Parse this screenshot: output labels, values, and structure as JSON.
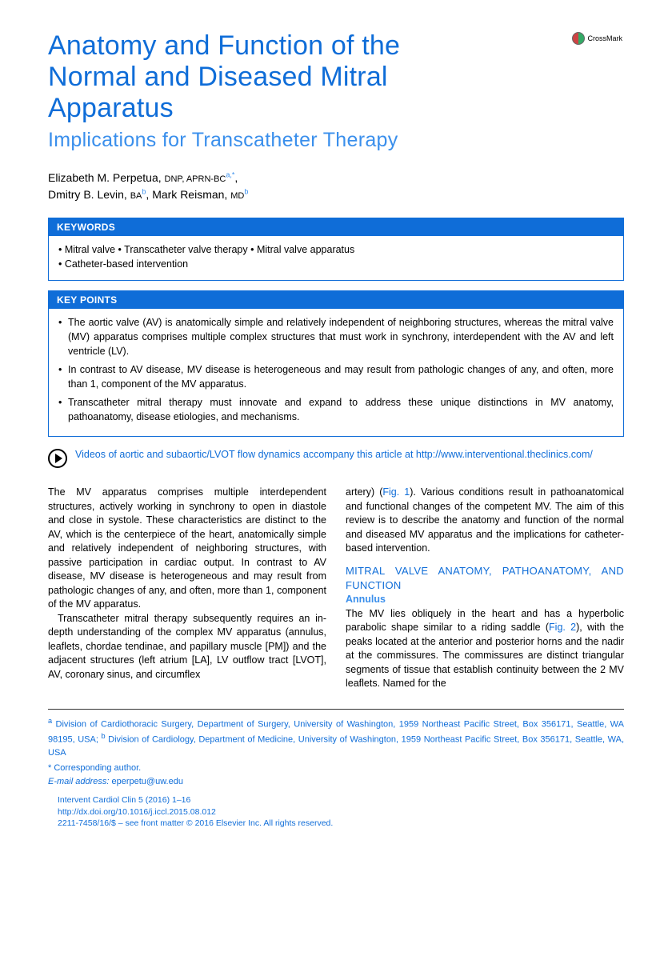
{
  "crossmark": {
    "label": "CrossMark"
  },
  "title": "Anatomy and Function of the Normal and Diseased Mitral Apparatus",
  "subtitle": "Implications for Transcatheter Therapy",
  "authors": {
    "a1": {
      "name": "Elizabeth M. Perpetua,",
      "cred": "DNP, APRN-BC",
      "sup": "a,*"
    },
    "a2": {
      "name": "Dmitry B. Levin,",
      "cred": "BA",
      "sup": "b"
    },
    "a3": {
      "name": "Mark Reisman,",
      "cred": "MD",
      "sup": "b"
    }
  },
  "keywords": {
    "header": "KEYWORDS",
    "line1": "• Mitral valve • Transcatheter valve therapy • Mitral valve apparatus",
    "line2": "• Catheter-based intervention"
  },
  "keypoints": {
    "header": "KEY POINTS",
    "items": [
      "The aortic valve (AV) is anatomically simple and relatively independent of neighboring structures, whereas the mitral valve (MV) apparatus comprises multiple complex structures that must work in synchrony, interdependent with the AV and left ventricle (LV).",
      "In contrast to AV disease, MV disease is heterogeneous and may result from pathologic changes of any, and often, more than 1, component of the MV apparatus.",
      "Transcatheter mitral therapy must innovate and expand to address these unique distinctions in MV anatomy, pathoanatomy, disease etiologies, and mechanisms."
    ]
  },
  "video": "Videos of aortic and subaortic/LVOT flow dynamics accompany this article at http://www.interventional.theclinics.com/",
  "body": {
    "p1": "The MV apparatus comprises multiple interdependent structures, actively working in synchrony to open in diastole and close in systole. These characteristics are distinct to the AV, which is the centerpiece of the heart, anatomically simple and relatively independent of neighboring structures, with passive participation in cardiac output. In contrast to AV disease, MV disease is heterogeneous and may result from pathologic changes of any, and often, more than 1, component of the MV apparatus.",
    "p2a": "Transcatheter mitral therapy subsequently requires an in-depth understanding of the complex MV apparatus (annulus, leaflets, chordae tendinae, and papillary muscle [PM]) and the adjacent structures (left atrium [LA], LV outflow tract [LVOT], AV, coronary sinus, and circumflex",
    "p2b_pre": "artery) (",
    "p2b_fig": "Fig. 1",
    "p2b_post": "). Various conditions result in pathoanatomical and functional changes of the competent MV. The aim of this review is to describe the anatomy and function of the normal and diseased MV apparatus and the implications for catheter-based intervention.",
    "sectionHead": "MITRAL VALVE ANATOMY, PATHOANATOMY, AND FUNCTION",
    "subsection": "Annulus",
    "p3_pre": "The MV lies obliquely in the heart and has a hyperbolic parabolic shape similar to a riding saddle (",
    "p3_fig": "Fig. 2",
    "p3_post": "), with the peaks located at the anterior and posterior horns and the nadir at the commissures. The commissures are distinct triangular segments of tissue that establish continuity between the 2 MV leaflets. Named for the"
  },
  "affiliations": {
    "text_a_sup": "a",
    "text_a": " Division of Cardiothoracic Surgery, Department of Surgery, University of Washington, 1959 Northeast Pacific Street, Box 356171, Seattle, WA 98195, USA; ",
    "text_b_sup": "b",
    "text_b": " Division of Cardiology, Department of Medicine, University of Washington, 1959 Northeast Pacific Street, Box 356171, Seattle, WA, USA"
  },
  "corresponding": "* Corresponding author.",
  "email_label": "E-mail address: ",
  "email_value": "eperpetu@uw.edu",
  "citation": {
    "line1": "Intervent Cardiol Clin 5 (2016) 1–16",
    "line2": "http://dx.doi.org/10.1016/j.iccl.2015.08.012",
    "line3": "2211-7458/16/$ – see front matter © 2016 Elsevier Inc. All rights reserved."
  }
}
